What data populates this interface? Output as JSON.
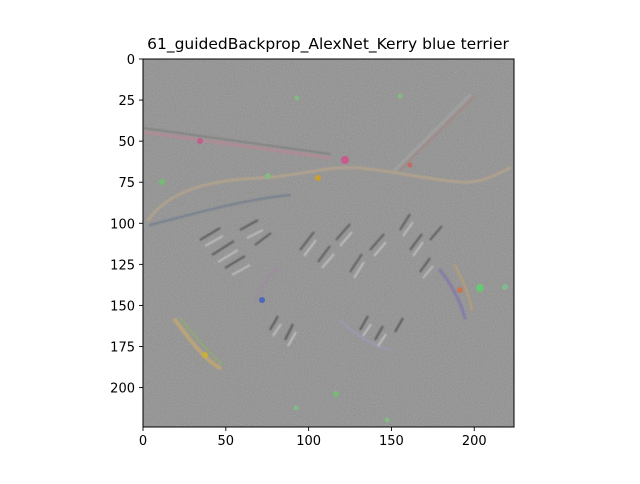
{
  "figure": {
    "title": "61_guidedBackprop_AlexNet_Kerry blue terrier"
  },
  "image_panel": {
    "description": "guided backpropagation saliency map (grey background with colorful edge gradients)",
    "x_extent": [
      0,
      224
    ],
    "y_extent": [
      0,
      224
    ],
    "x_ticks": [
      0,
      50,
      100,
      150,
      200
    ],
    "y_ticks": [
      0,
      25,
      50,
      75,
      100,
      125,
      150,
      175,
      200
    ],
    "background_color": "#8f8f8f"
  }
}
